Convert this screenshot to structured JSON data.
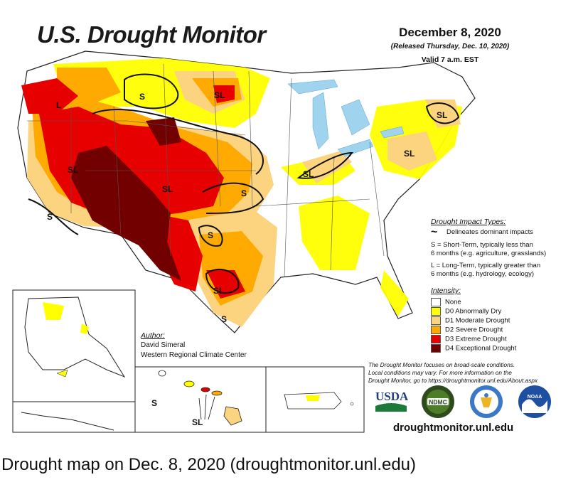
{
  "header": {
    "title": "U.S. Drought Monitor",
    "date": "December 8, 2020",
    "released": "(Released Thursday, Dec. 10, 2020)",
    "valid": "Valid 7 a.m. EST"
  },
  "impact_types": {
    "title": "Drought Impact Types:",
    "delineates": "Delineates dominant impacts",
    "short_term_1": "S = Short-Term, typically less than",
    "short_term_2": "6 months (e.g. agriculture, grasslands)",
    "long_term_1": "L = Long-Term, typically greater than",
    "long_term_2": "6 months (e.g. hydrology, ecology)"
  },
  "intensity": {
    "title": "Intensity:",
    "levels": [
      {
        "label": "None",
        "color": "#ffffff"
      },
      {
        "label": "D0 Abnormally Dry",
        "color": "#ffff00"
      },
      {
        "label": "D1 Moderate Drought",
        "color": "#fcd37f"
      },
      {
        "label": "D2 Severe Drought",
        "color": "#ffaa00"
      },
      {
        "label": "D3 Extreme Drought",
        "color": "#e60000"
      },
      {
        "label": "D4 Exceptional Drought",
        "color": "#730000"
      }
    ]
  },
  "author": {
    "title": "Author:",
    "name": "David Simeral",
    "org": "Western Regional Climate Center"
  },
  "note": {
    "line1": "The Drought Monitor focuses on broad-scale conditions.",
    "line2": "Local conditions may vary. For more information on the",
    "line3": "Drought Monitor, go to https://droughtmonitor.unl.edu/About.aspx"
  },
  "map_labels": {
    "sl": "SL",
    "s": "S",
    "l": "L"
  },
  "logos": {
    "usda": "USDA",
    "ndmc": "NDMC",
    "noaa": "NOAA"
  },
  "site": "droughtmonitor.unl.edu",
  "caption": "Drought map on Dec. 8, 2020 (droughtmonitor.unl.edu)"
}
